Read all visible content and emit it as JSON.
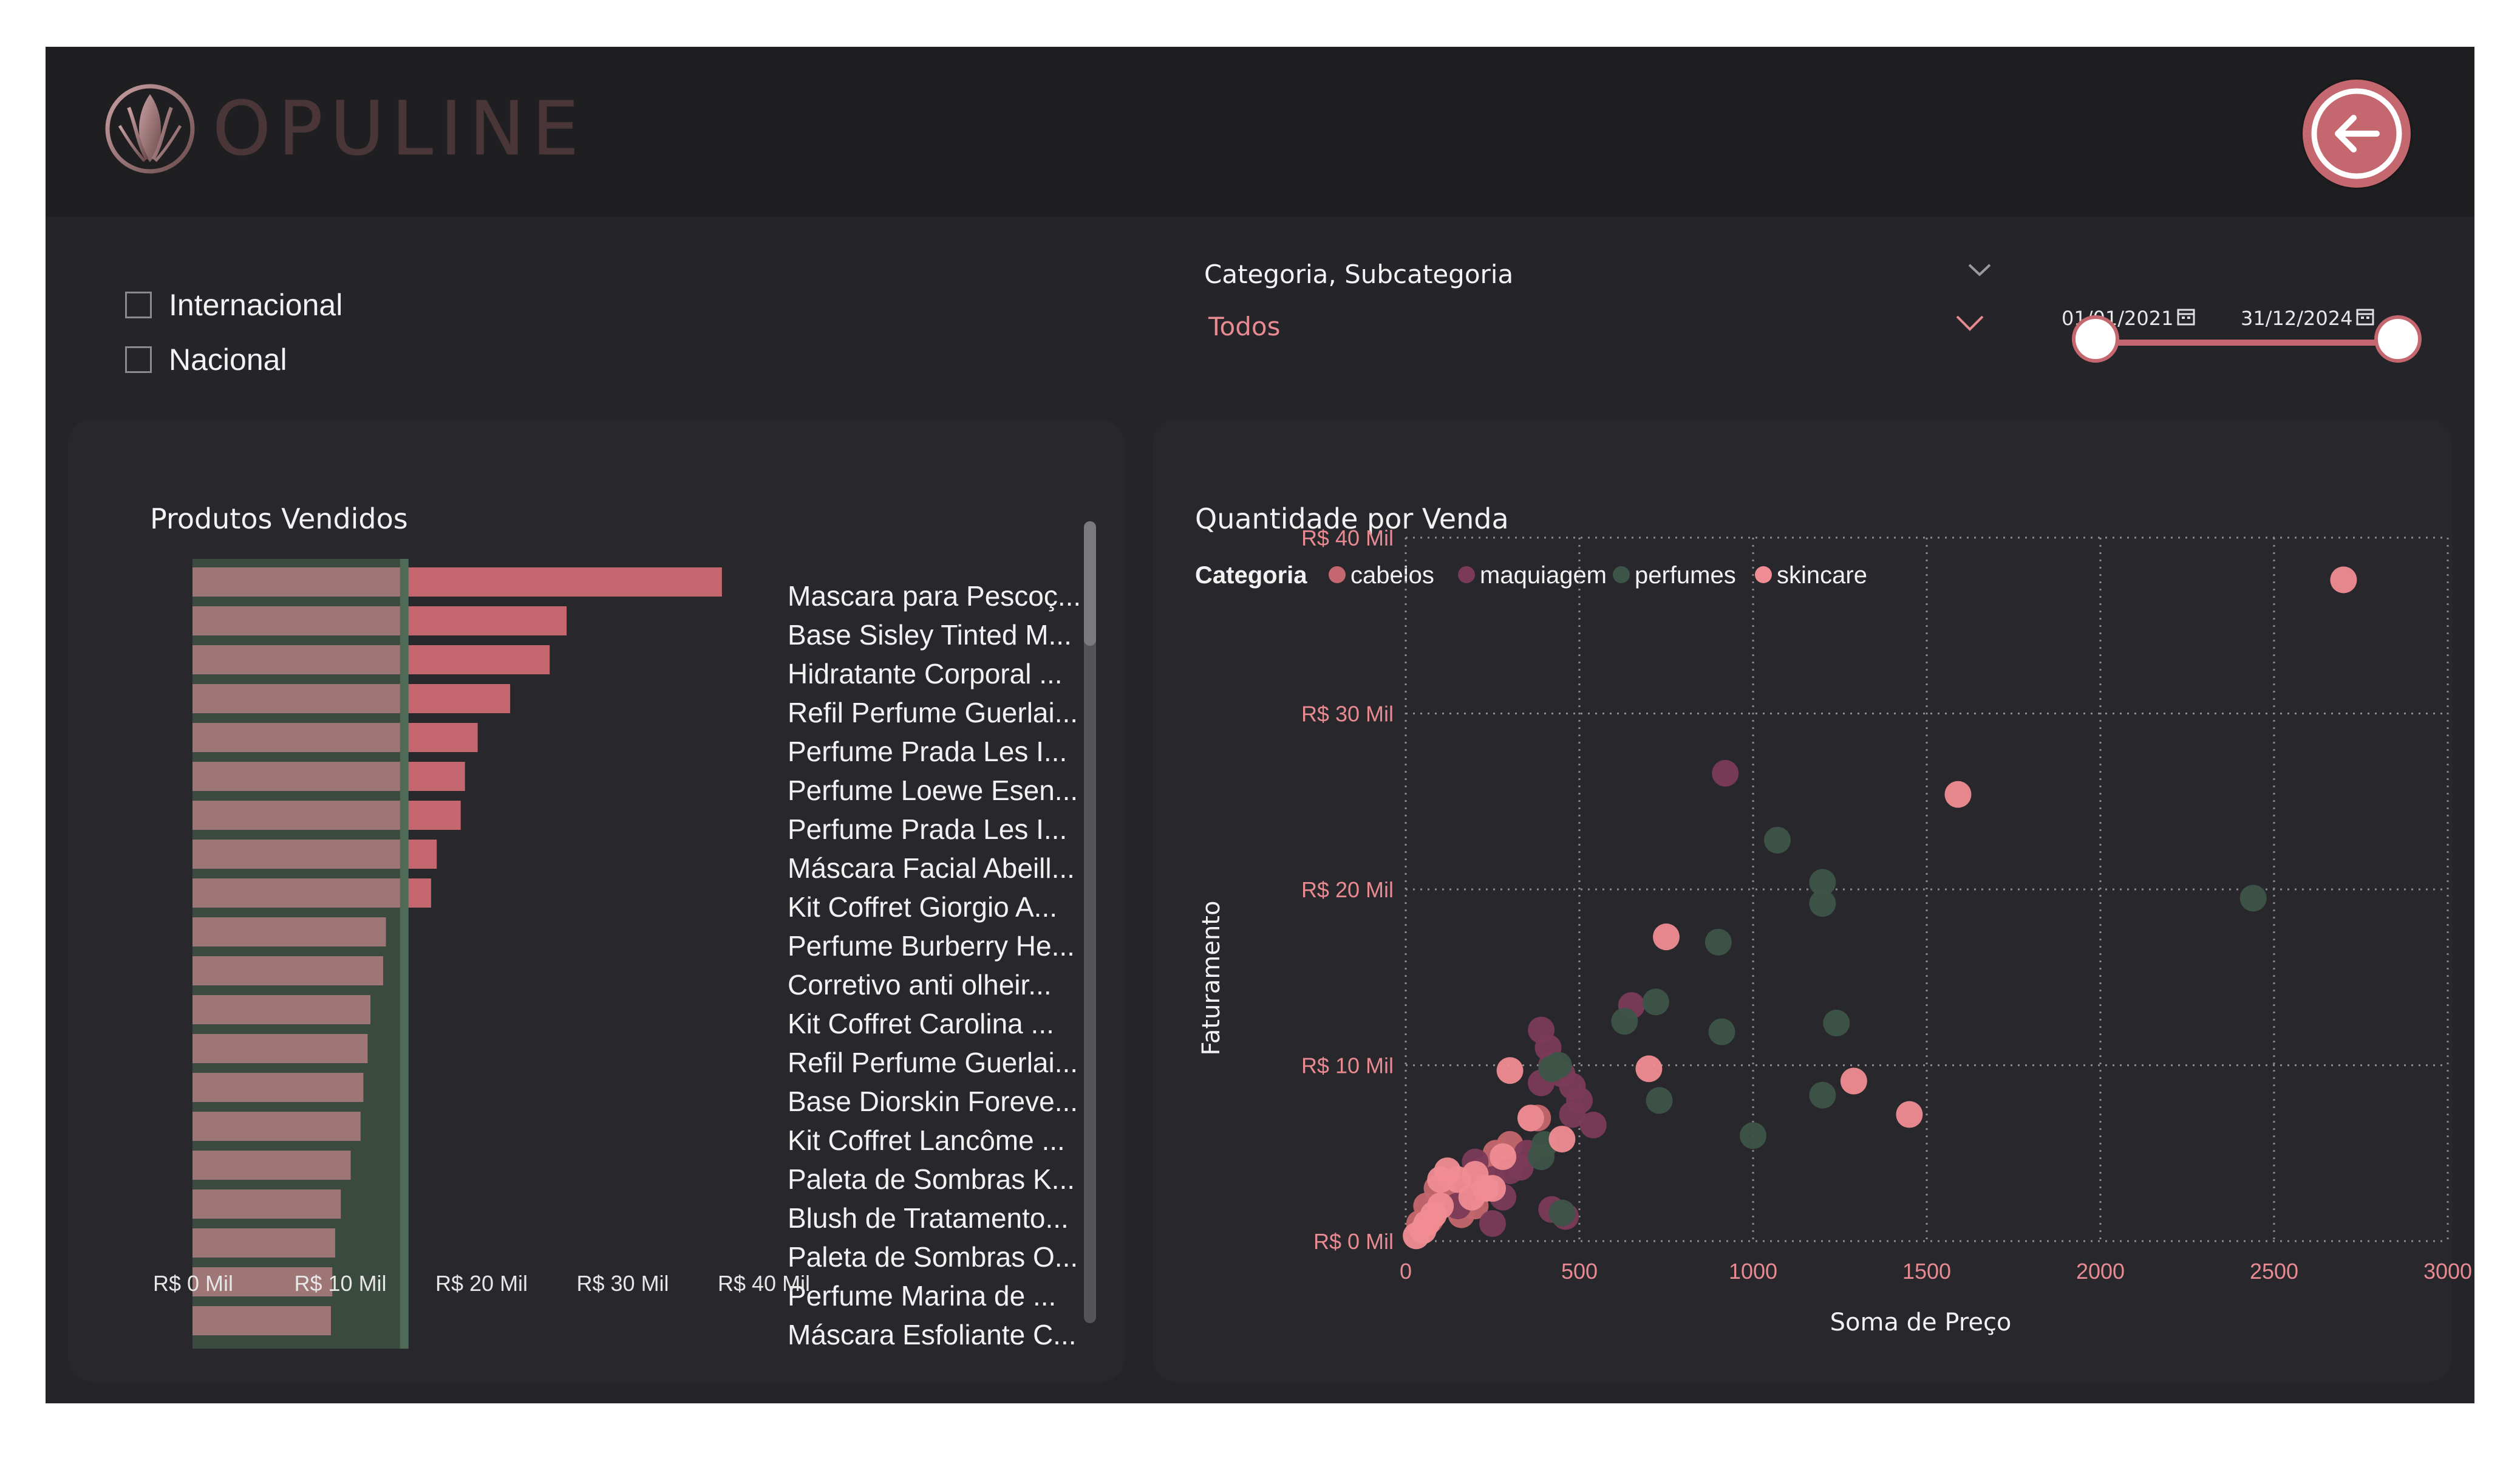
{
  "header": {
    "brand": "OPULINE",
    "back_button_icon": "arrow-left-icon"
  },
  "filters": {
    "origin": [
      {
        "label": "Internacional",
        "checked": false
      },
      {
        "label": "Nacional",
        "checked": false
      }
    ],
    "category": {
      "title": "Categoria, Subcategoria",
      "value": "Todos"
    },
    "dates": {
      "start": "01/01/2021",
      "end": "31/12/2024"
    }
  },
  "colors": {
    "bar": "#c4676e",
    "accent_pink": "#e88a92",
    "bg": "#252428",
    "panel": "#28272b"
  },
  "chart_data": [
    {
      "type": "bar",
      "orientation": "horizontal",
      "title": "Produtos Vendidos",
      "categories": [
        "Mascara para Pescoç...",
        "Base Sisley Tinted M...",
        "Hidratante Corporal ...",
        "Refil Perfume Guerlai...",
        "Perfume Prada Les I...",
        "Perfume Loewe Esen...",
        "Perfume Prada Les I...",
        "Máscara Facial Abeill...",
        "Kit Coffret Giorgio A...",
        "Perfume Burberry He...",
        "Corretivo anti olheir...",
        "Kit Coffret Carolina ...",
        "Refil Perfume Guerlai...",
        "Base Diorskin Foreve...",
        "Kit Coffret Lancôme ...",
        "Paleta de Sombras K...",
        "Blush de Tratamento...",
        "Paleta de Sombras O...",
        "Perfume Marina de ...",
        "Máscara Esfoliante C..."
      ],
      "values": [
        37.5,
        26.5,
        25.3,
        22.5,
        20.2,
        19.3,
        19.0,
        17.3,
        16.9,
        13.7,
        13.5,
        12.6,
        12.4,
        12.1,
        11.9,
        11.2,
        10.5,
        10.1,
        9.9,
        9.8
      ],
      "x_ticks": [
        "R$ 0 Mil",
        "R$ 10 Mil",
        "R$ 20 Mil",
        "R$ 30 Mil",
        "R$ 40 Mil"
      ],
      "xlim": [
        0,
        40
      ],
      "reference_line": 15
    },
    {
      "type": "scatter",
      "title": "Quantidade por Venda",
      "xlabel": "Soma de Preço",
      "ylabel": "Faturamento",
      "xlim": [
        0,
        3000
      ],
      "ylim": [
        0,
        40
      ],
      "x_ticks": [
        "0",
        "500",
        "1000",
        "1500",
        "2000",
        "2500",
        "3000"
      ],
      "y_ticks": [
        "R$ 0 Mil",
        "R$ 10 Mil",
        "R$ 20 Mil",
        "R$ 30 Mil",
        "R$ 40 Mil"
      ],
      "legend_title": "Categoria",
      "legend_position": "top-left",
      "grid": true,
      "series": [
        {
          "name": "cabelos",
          "color": "#c4676e",
          "points": [
            [
              40,
              1
            ],
            [
              60,
              2
            ],
            [
              90,
              3
            ],
            [
              120,
              2.5
            ],
            [
              170,
              3
            ],
            [
              220,
              4
            ],
            [
              260,
              5
            ],
            [
              300,
              5.5
            ],
            [
              160,
              1.5
            ],
            [
              70,
              1.2
            ],
            [
              200,
              2
            ],
            [
              380,
              7
            ]
          ]
        },
        {
          "name": "maquiagem",
          "color": "#7a3a58",
          "points": [
            [
              920,
              26.6
            ],
            [
              390,
              12
            ],
            [
              420,
              10
            ],
            [
              450,
              9.5
            ],
            [
              480,
              8.8
            ],
            [
              500,
              8
            ],
            [
              540,
              6.6
            ],
            [
              650,
              13.4
            ],
            [
              410,
              11
            ],
            [
              360,
              7
            ],
            [
              300,
              4
            ],
            [
              250,
              3.5
            ],
            [
              200,
              4.5
            ],
            [
              180,
              3
            ],
            [
              150,
              2
            ],
            [
              280,
              2.5
            ],
            [
              420,
              1.8
            ],
            [
              460,
              1.4
            ],
            [
              250,
              1
            ],
            [
              350,
              5
            ],
            [
              330,
              4.2
            ],
            [
              480,
              7.2
            ],
            [
              390,
              9
            ]
          ]
        },
        {
          "name": "perfumes",
          "color": "#3d5448",
          "points": [
            [
              1070,
              22.8
            ],
            [
              1200,
              20.4
            ],
            [
              1200,
              19.2
            ],
            [
              2440,
              19.5
            ],
            [
              900,
              17
            ],
            [
              1240,
              12.4
            ],
            [
              910,
              11.9
            ],
            [
              720,
              13.6
            ],
            [
              630,
              12.5
            ],
            [
              440,
              10
            ],
            [
              730,
              8
            ],
            [
              1200,
              8.3
            ],
            [
              1000,
              6
            ],
            [
              400,
              5.5
            ],
            [
              450,
              1.6
            ],
            [
              390,
              4.8
            ],
            [
              420,
              9.8
            ]
          ]
        },
        {
          "name": "skincare",
          "color": "#f08c93",
          "points": [
            [
              2700,
              37.6
            ],
            [
              1590,
              25.4
            ],
            [
              750,
              17.3
            ],
            [
              1290,
              9.1
            ],
            [
              1450,
              7.2
            ],
            [
              700,
              9.8
            ],
            [
              300,
              9.7
            ],
            [
              360,
              7
            ],
            [
              450,
              5.8
            ],
            [
              280,
              4.8
            ],
            [
              250,
              3
            ],
            [
              200,
              3.8
            ],
            [
              150,
              3.5
            ],
            [
              100,
              2
            ],
            [
              80,
              1.5
            ],
            [
              50,
              0.6
            ],
            [
              30,
              0.3
            ],
            [
              60,
              1
            ],
            [
              120,
              4
            ],
            [
              230,
              3
            ],
            [
              100,
              3.5
            ],
            [
              190,
              2.5
            ]
          ]
        }
      ]
    }
  ]
}
